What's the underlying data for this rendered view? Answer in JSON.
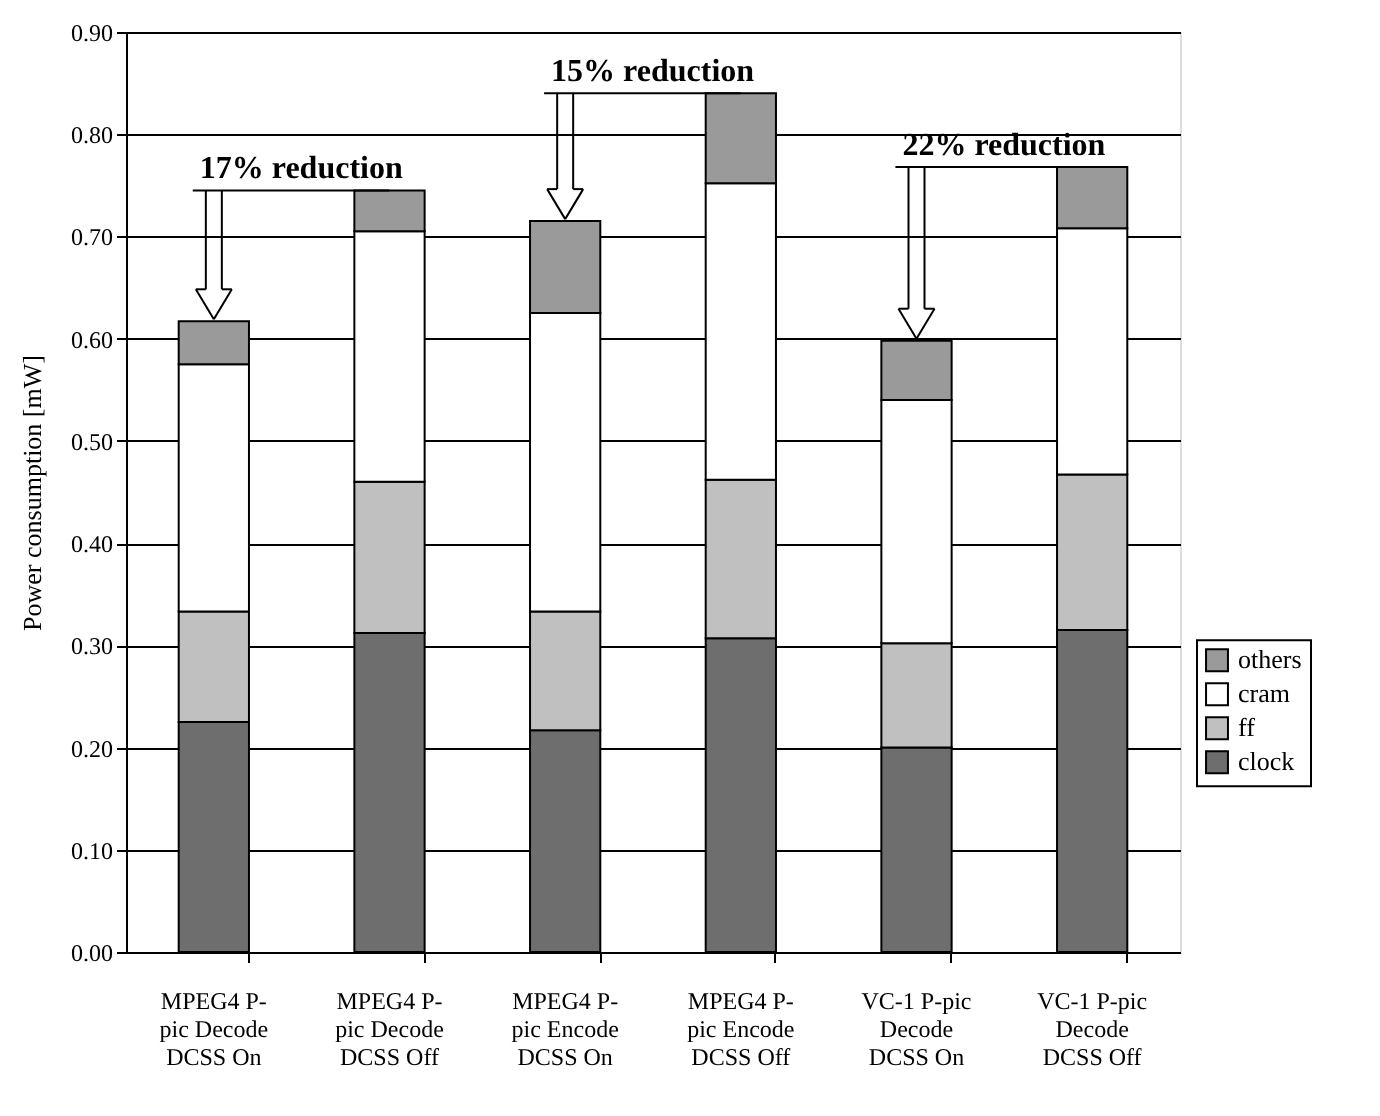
{
  "chart_data": {
    "type": "bar",
    "stacked": true,
    "ylabel": "Power consumption [mW]",
    "categories": [
      "MPEG4 P-pic Decode DCSS On",
      "MPEG4 P-pic Decode DCSS Off",
      "MPEG4 P-pic Encode DCSS On",
      "MPEG4 P-pic Encode DCSS Off",
      "VC-1 P-pic Decode DCSS On",
      "VC-1 P-pic Decode DCSS Off"
    ],
    "series": [
      {
        "name": "clock",
        "color": "#6e6e6e",
        "values": [
          0.225,
          0.312,
          0.217,
          0.307,
          0.2,
          0.315
        ]
      },
      {
        "name": "ff",
        "color": "#c0c0c0",
        "values": [
          0.108,
          0.148,
          0.116,
          0.155,
          0.102,
          0.152
        ]
      },
      {
        "name": "cram",
        "color": "#ffffff",
        "values": [
          0.242,
          0.245,
          0.292,
          0.29,
          0.238,
          0.241
        ]
      },
      {
        "name": "others",
        "color": "#9a9a9a",
        "values": [
          0.042,
          0.04,
          0.09,
          0.088,
          0.058,
          0.06
        ]
      }
    ],
    "ylim": [
      0,
      0.9
    ],
    "yticks": [
      {
        "value": 0,
        "label": "0.00"
      },
      {
        "value": 0.1,
        "label": "0.10"
      },
      {
        "value": 0.2,
        "label": "0.20"
      },
      {
        "value": 0.3,
        "label": "0.30"
      },
      {
        "value": 0.4,
        "label": "0.40"
      },
      {
        "value": 0.5,
        "label": "0.50"
      },
      {
        "value": 0.6,
        "label": "0.60"
      },
      {
        "value": 0.7,
        "label": "0.70"
      },
      {
        "value": 0.8,
        "label": "0.80"
      },
      {
        "value": 0.9,
        "label": "0.90"
      }
    ],
    "grid": "y",
    "legend": "bottom right",
    "annotations": [
      "17% reduction",
      "15% reduction",
      "22% reduction"
    ]
  }
}
